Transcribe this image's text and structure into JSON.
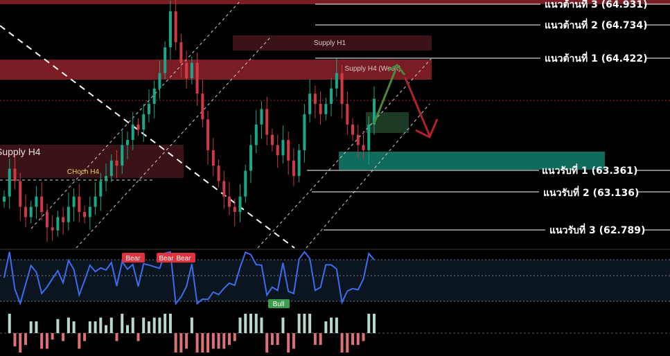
{
  "chart_data": {
    "type": "candlestick",
    "instrument_note": "",
    "levels": [
      {
        "id": "r3",
        "label": "แนวต้านที่ 3 (64.931)",
        "price": 64.931,
        "kind": "resistance"
      },
      {
        "id": "r2",
        "label": "แนวต้านที่ 2 (64.734)",
        "price": 64.734,
        "kind": "resistance"
      },
      {
        "id": "r1",
        "label": "แนวต้านที่ 1 (64.422)",
        "price": 64.422,
        "kind": "resistance"
      },
      {
        "id": "s1",
        "label": "แนวรับที่ 1 (63.361)",
        "price": 63.361,
        "kind": "support"
      },
      {
        "id": "s2",
        "label": "แนวรับที่ 2 (63.136)",
        "price": 63.136,
        "kind": "support"
      },
      {
        "id": "s3",
        "label": "แนวรับที่ 3 (62.789)",
        "price": 62.789,
        "kind": "support"
      }
    ],
    "zones": [
      {
        "id": "supply_h1",
        "label": "Supply H1",
        "price_top": 64.66,
        "price_bottom": 64.52
      },
      {
        "id": "supply_h4_weak",
        "label": "Supply H4 (Weak)",
        "price_top": 64.42,
        "price_bottom": 64.22
      },
      {
        "id": "supply_h4",
        "label": "Supply H4",
        "price_top": 63.64,
        "price_bottom": 63.33
      },
      {
        "id": "demand_zone",
        "label": "",
        "price_top": 63.57,
        "price_bottom": 63.37
      },
      {
        "id": "entry_box",
        "label": "",
        "price_top": 63.98,
        "price_bottom": 63.78
      }
    ],
    "annotations": [
      {
        "id": "choch",
        "label": "CHoch H4",
        "price": 63.33
      }
    ],
    "signals": [
      {
        "id": "bear1",
        "label": "Bear",
        "type": "bear"
      },
      {
        "id": "bear2",
        "label": "Bear",
        "type": "bear"
      },
      {
        "id": "bear3",
        "label": "Bear",
        "type": "bear"
      },
      {
        "id": "bull1",
        "label": "Bull",
        "type": "bull"
      }
    ],
    "close": [
      63.05,
      63.32,
      63.2,
      62.95,
      62.85,
      62.95,
      63.05,
      62.9,
      62.75,
      62.72,
      62.85,
      62.8,
      62.95,
      63.05,
      62.9,
      62.85,
      62.95,
      63.05,
      63.2,
      63.25,
      63.4,
      63.35,
      63.55,
      63.6,
      63.75,
      63.7,
      63.85,
      63.95,
      64.1,
      64.25,
      64.5,
      64.85,
      64.55,
      64.35,
      64.2,
      64.35,
      64.05,
      63.8,
      63.5,
      63.35,
      63.2,
      63.05,
      62.95,
      62.9,
      63.05,
      63.3,
      63.55,
      63.75,
      63.9,
      63.65,
      63.55,
      63.45,
      63.6,
      63.4,
      63.25,
      63.5,
      63.85,
      64.05,
      63.95,
      63.85,
      63.95,
      64.1,
      64.25,
      63.95,
      63.75,
      63.65,
      63.55,
      63.5,
      63.75,
      64.0
    ],
    "price_range": [
      62.55,
      64.96
    ]
  },
  "decor": {
    "colors": {
      "background": "#000000",
      "supply_zone": "#7a1c23",
      "supply_zone_dark": "#3b1216",
      "demand_zone": "#0f6b5c",
      "entry_box": "#1d3a25",
      "rsi_line": "#3a6df0",
      "rsi_panel": "#0b1520",
      "bear_tag": "#e0323e",
      "bull_tag": "#3e9a4c",
      "arrow_up": "#4a8a3c",
      "arrow_down": "#b0222a",
      "candle_up": "#1aa88a",
      "candle_down": "#d03a44"
    }
  }
}
